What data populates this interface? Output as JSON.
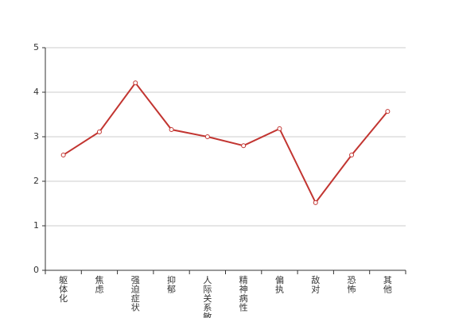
{
  "chart_data": {
    "type": "line",
    "categories": [
      "躯体化",
      "焦虑",
      "强迫症状",
      "抑郁",
      "人际关系敏感",
      "精神病性",
      "偏执",
      "敌对",
      "恐怖",
      "其他"
    ],
    "values": [
      2.59,
      3.11,
      4.21,
      3.16,
      3.0,
      2.8,
      3.18,
      1.52,
      2.59,
      3.57
    ],
    "color": "#c23531",
    "ylim": [
      0,
      5
    ],
    "yticks": [
      0,
      1,
      2,
      3,
      4,
      5
    ],
    "grid": true
  }
}
